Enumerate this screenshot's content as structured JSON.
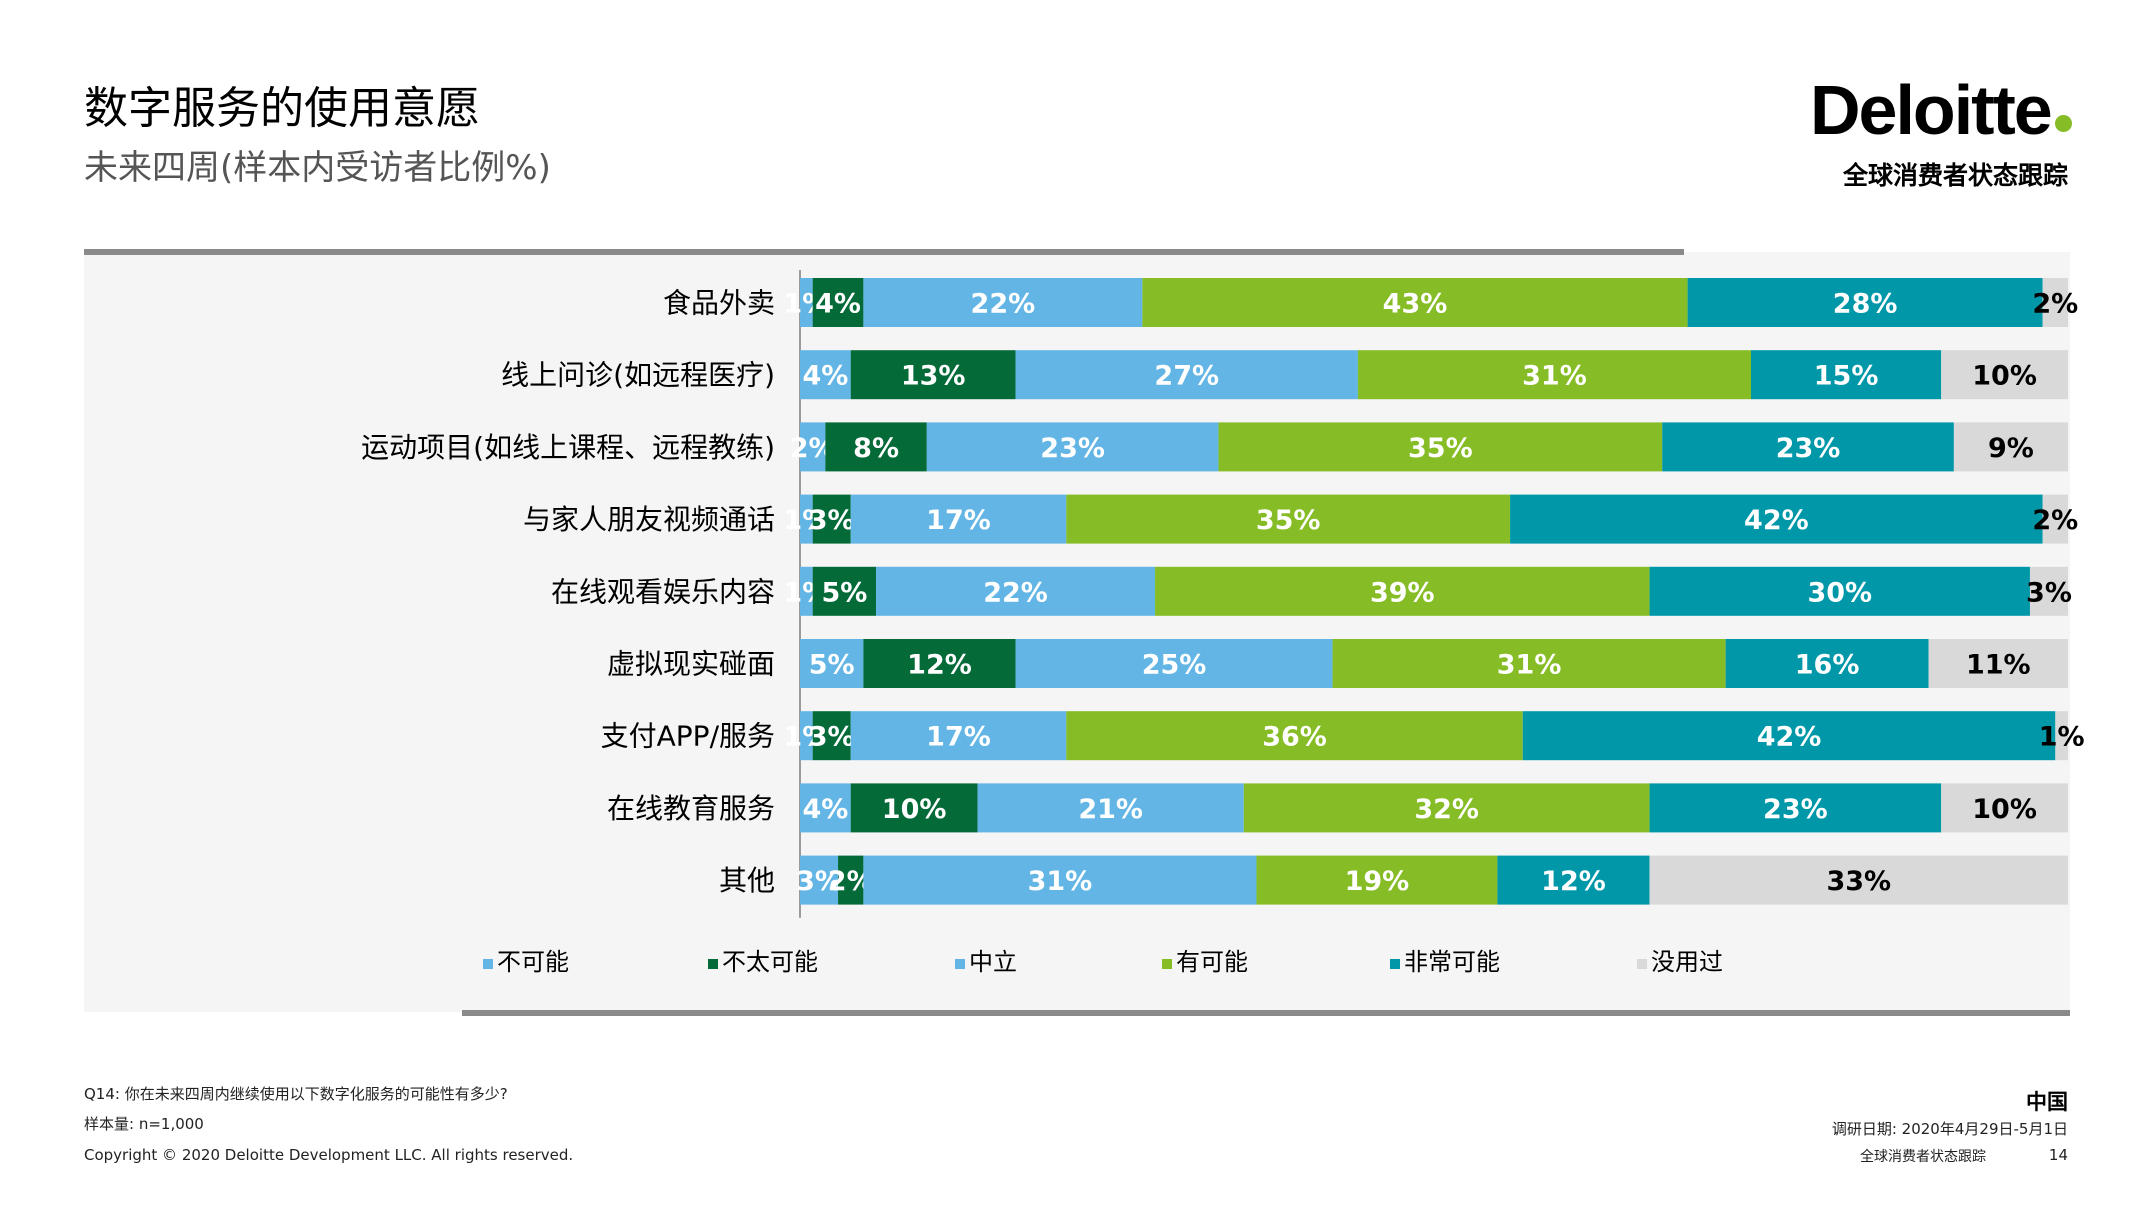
{
  "header": {
    "title": "数字服务的使用意愿",
    "subtitle": "未来四周(样本内受访者比例%)",
    "logo": "Deloitte",
    "tracker": "全球消费者状态跟踪"
  },
  "chart_data": {
    "type": "bar",
    "orientation": "horizontal",
    "stacked": true,
    "categories": [
      "食品外卖",
      "线上问诊(如远程医疗)",
      "运动项目(如线上课程、远程教练)",
      "与家人朋友视频通话",
      "在线观看娱乐内容",
      "虚拟现实碰面",
      "支付APP/服务",
      "在线教育服务",
      "其他"
    ],
    "series": [
      {
        "name": "不可能",
        "color": "#62b5e5",
        "values": [
          1,
          4,
          2,
          1,
          1,
          5,
          1,
          4,
          3
        ]
      },
      {
        "name": "不太可能",
        "color": "#046a38",
        "values": [
          4,
          13,
          8,
          3,
          5,
          12,
          3,
          10,
          2
        ]
      },
      {
        "name": "中立",
        "color": "#62b5e5",
        "values": [
          22,
          27,
          23,
          17,
          22,
          25,
          17,
          21,
          31
        ]
      },
      {
        "name": "有可能",
        "color": "#86bc25",
        "values": [
          43,
          31,
          35,
          35,
          39,
          31,
          36,
          32,
          19
        ]
      },
      {
        "name": "非常可能",
        "color": "#0097a9",
        "values": [
          28,
          15,
          23,
          42,
          30,
          16,
          42,
          23,
          12
        ]
      },
      {
        "name": "没用过",
        "color": "#d9d9d9",
        "values": [
          2,
          10,
          9,
          2,
          3,
          11,
          1,
          10,
          33
        ]
      }
    ],
    "value_suffix": "%",
    "legend_position": "bottom"
  },
  "footer": {
    "question": "Q14: 你在未来四周内继续使用以下数字化服务的可能性有多少?",
    "sample": "样本量: n=1,000",
    "copyright": "Copyright © 2020 Deloitte Development LLC. All rights reserved.",
    "country": "中国",
    "survey_date": "调研日期: 2020年4月29日-5月1日",
    "tracker_small": "全球消费者状态跟踪",
    "page_number": "14"
  }
}
